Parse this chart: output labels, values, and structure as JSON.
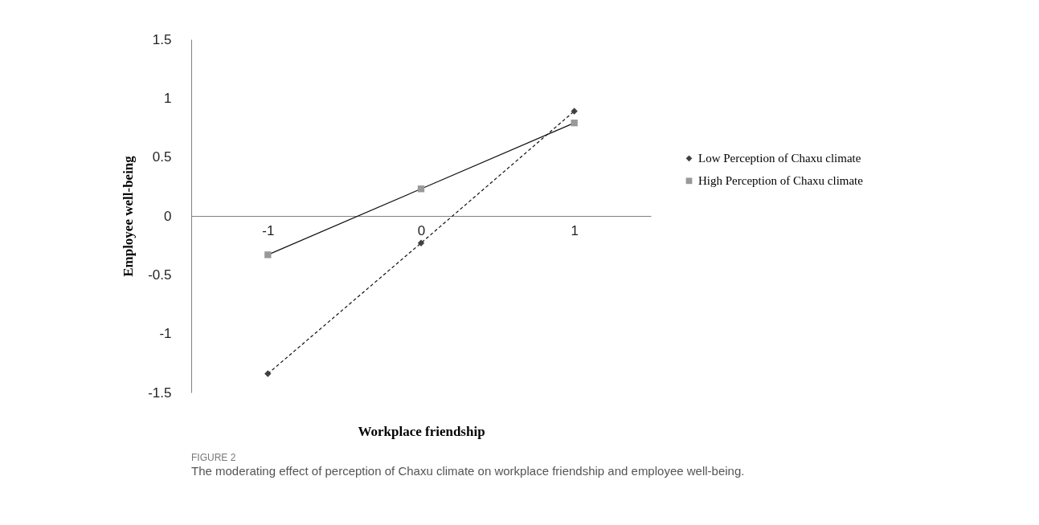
{
  "chart_data": {
    "type": "line",
    "xlabel": "Workplace friendship",
    "ylabel": "Employee well-being",
    "categories": [
      "-1",
      "0",
      "1"
    ],
    "series": [
      {
        "name": "Low Perception of Chaxu climate",
        "color": "#404040",
        "values": [
          -1.34,
          -0.23,
          0.89
        ],
        "line_style": "dashed",
        "marker": "diamond"
      },
      {
        "name": "High Perception of Chaxu climate",
        "color": "#999999",
        "values": [
          -0.33,
          0.23,
          0.79
        ],
        "line_style": "solid",
        "marker": "square"
      }
    ],
    "ylim": [
      -1.5,
      1.5
    ],
    "yticks": [
      -1.5,
      -1,
      -0.5,
      0,
      0.5,
      1,
      1.5
    ],
    "grid": false,
    "legend": "right",
    "annotations": [
      "FIGURE 2",
      "The moderating effect of perception of Chaxu climate on workplace friendship and employee well-being."
    ]
  }
}
